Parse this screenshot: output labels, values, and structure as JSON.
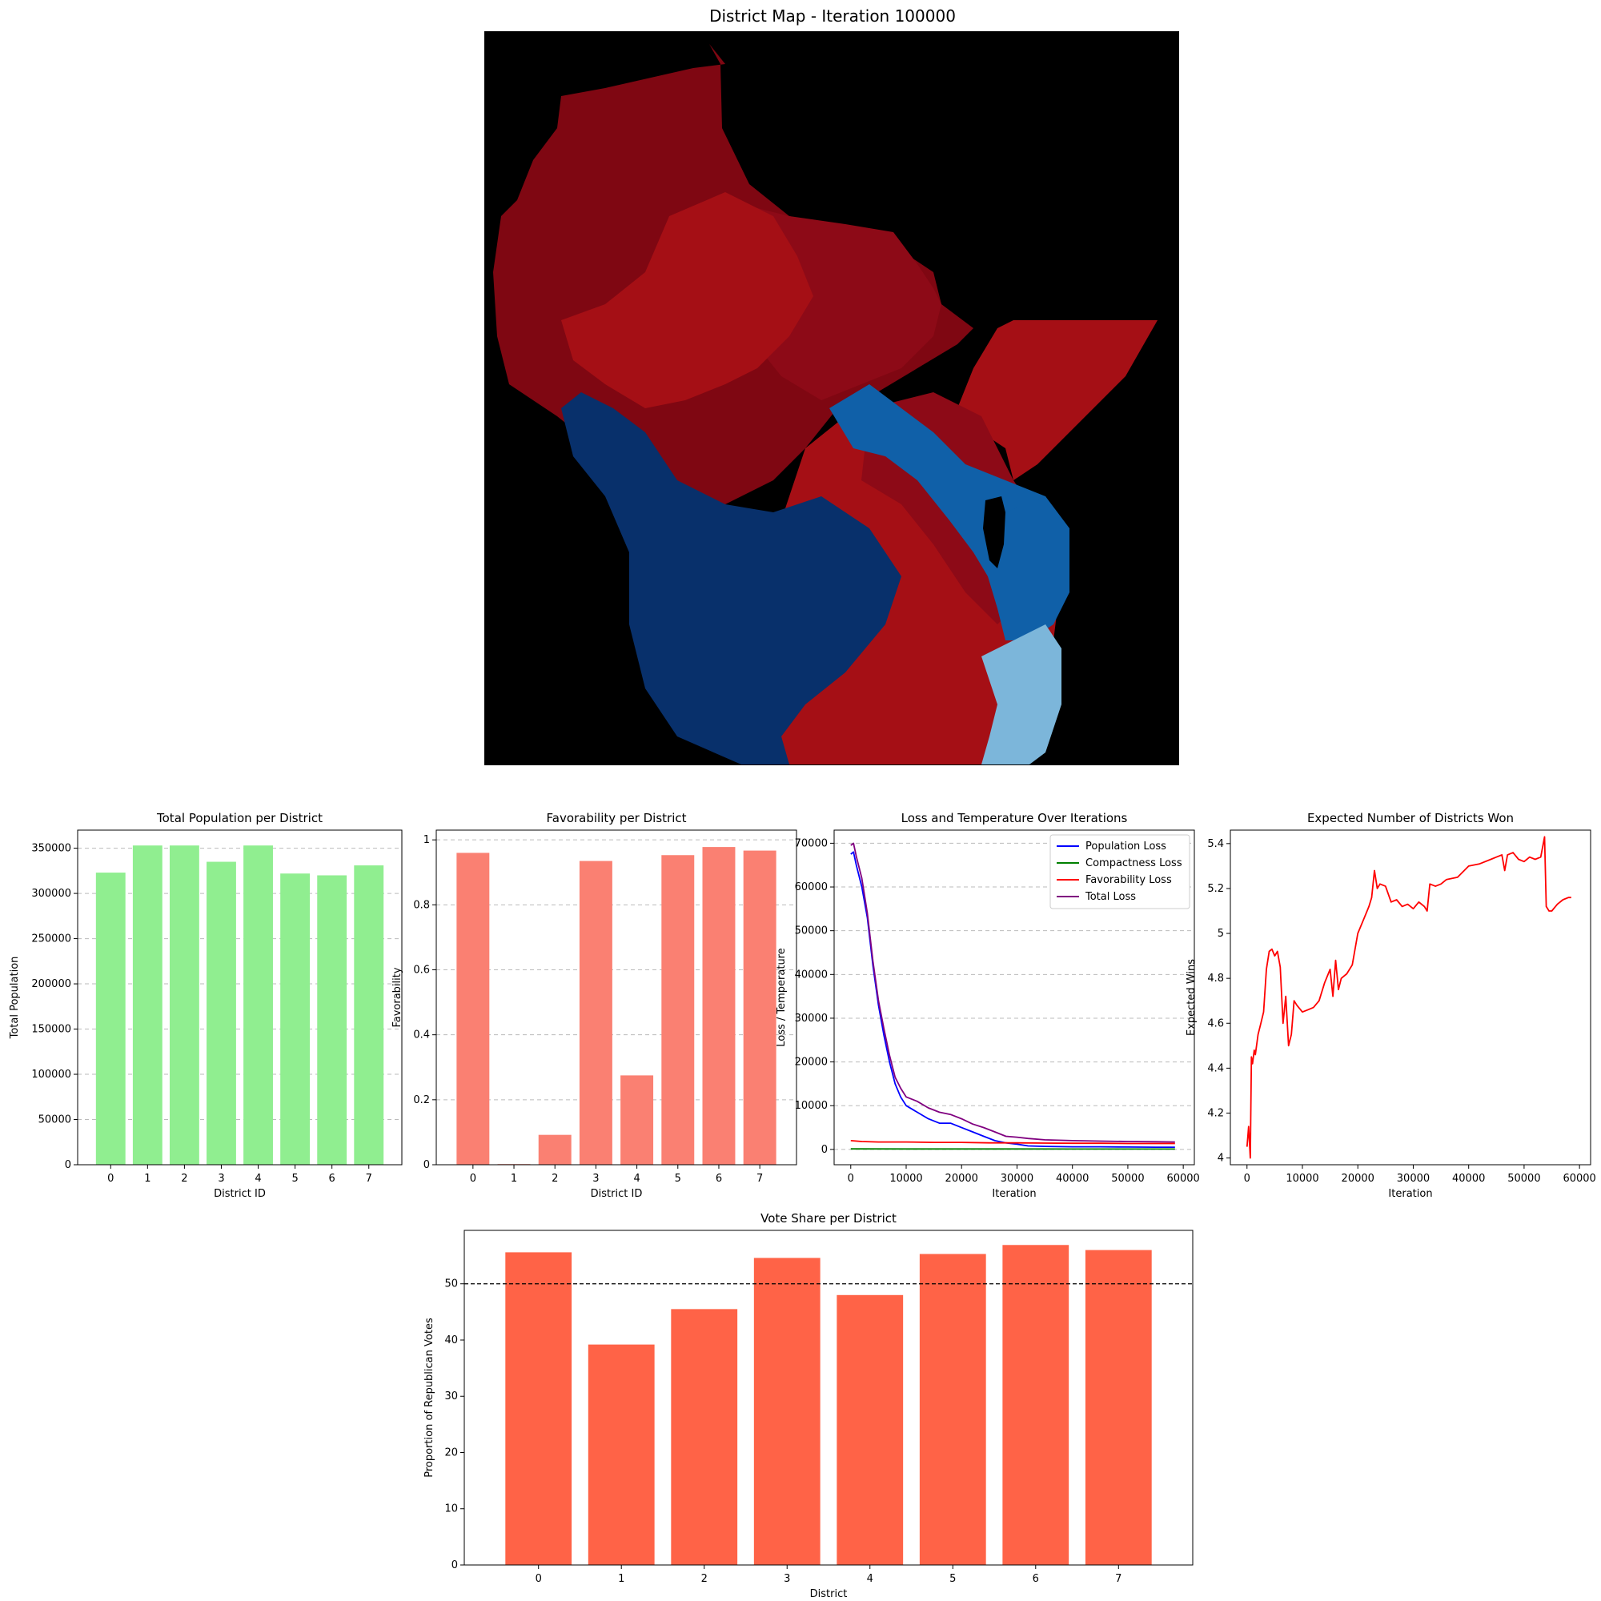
{
  "map": {
    "title": "District Map - Iteration 100000",
    "colors": {
      "background": "#000000",
      "dark_red": "#7f0712",
      "red": "#a50f15",
      "mid_red": "#8d0a17",
      "navy": "#08306b",
      "blue": "#1060a8",
      "light_blue": "#7cb6da"
    }
  },
  "chart_data": [
    {
      "type": "bar",
      "title": "Total Population per District",
      "xlabel": "District ID",
      "ylabel": "Total Population",
      "categories": [
        "0",
        "1",
        "2",
        "3",
        "4",
        "5",
        "6",
        "7"
      ],
      "values": [
        323000,
        353000,
        353000,
        335000,
        353000,
        322000,
        320000,
        331000
      ],
      "ylim": [
        0,
        370000
      ],
      "yticks": [
        0,
        50000,
        100000,
        150000,
        200000,
        250000,
        300000,
        350000
      ],
      "color": "#90ee90",
      "grid": "y-dashed"
    },
    {
      "type": "bar",
      "title": "Favorability per District",
      "xlabel": "District ID",
      "ylabel": "Favorability",
      "categories": [
        "0",
        "1",
        "2",
        "3",
        "4",
        "5",
        "6",
        "7"
      ],
      "values": [
        0.96,
        0.002,
        0.092,
        0.935,
        0.275,
        0.953,
        0.978,
        0.967
      ],
      "ylim": [
        0,
        1.03
      ],
      "yticks": [
        0.0,
        0.2,
        0.4,
        0.6,
        0.8,
        1.0
      ],
      "color": "#fa8072",
      "grid": "y-dashed"
    },
    {
      "type": "line",
      "title": "Loss and Temperature Over Iterations",
      "xlabel": "Iteration",
      "ylabel": "Loss / Temperature",
      "xlim": [
        -3000,
        62000
      ],
      "ylim": [
        -3500,
        73000
      ],
      "xticks": [
        0,
        10000,
        20000,
        30000,
        40000,
        50000,
        60000
      ],
      "yticks": [
        0,
        10000,
        20000,
        30000,
        40000,
        50000,
        60000,
        70000
      ],
      "legend": "top-right",
      "grid": "y-dashed",
      "series": [
        {
          "name": "Population Loss",
          "color": "#0000ff",
          "x": [
            0,
            500,
            1000,
            2000,
            3000,
            4000,
            5000,
            6000,
            7000,
            8000,
            9000,
            10000,
            12000,
            14000,
            16000,
            18000,
            20000,
            22000,
            24000,
            26000,
            28000,
            30000,
            32000,
            35000,
            40000,
            45000,
            50000,
            55000,
            58500
          ],
          "y": [
            67500,
            68000,
            65000,
            60000,
            53000,
            42000,
            33000,
            26000,
            20000,
            15000,
            12000,
            10000,
            8500,
            7000,
            6000,
            6000,
            5000,
            4000,
            3000,
            2000,
            1500,
            1200,
            800,
            700,
            600,
            600,
            550,
            500,
            500
          ]
        },
        {
          "name": "Compactness Loss",
          "color": "#008000",
          "x": [
            0,
            10000,
            20000,
            30000,
            40000,
            50000,
            58500
          ],
          "y": [
            120,
            110,
            100,
            100,
            90,
            90,
            90
          ]
        },
        {
          "name": "Favorability Loss",
          "color": "#ff0000",
          "x": [
            0,
            2000,
            5000,
            10000,
            15000,
            20000,
            25000,
            30000,
            35000,
            40000,
            45000,
            50000,
            55000,
            58500
          ],
          "y": [
            2000,
            1800,
            1700,
            1700,
            1600,
            1600,
            1500,
            1500,
            1450,
            1400,
            1400,
            1350,
            1350,
            1350
          ]
        },
        {
          "name": "Total Loss",
          "color": "#800080",
          "x": [
            0,
            500,
            1000,
            2000,
            3000,
            4000,
            5000,
            6000,
            7000,
            8000,
            9000,
            10000,
            12000,
            14000,
            16000,
            18000,
            20000,
            22000,
            24000,
            26000,
            28000,
            30000,
            32000,
            35000,
            40000,
            45000,
            50000,
            55000,
            58500
          ],
          "y": [
            69500,
            70000,
            67000,
            62000,
            54000,
            43000,
            34000,
            27500,
            21500,
            16500,
            14000,
            12000,
            11000,
            9500,
            8500,
            8000,
            7000,
            5800,
            5000,
            4000,
            3000,
            2800,
            2500,
            2200,
            2000,
            1900,
            1800,
            1750,
            1700
          ]
        }
      ]
    },
    {
      "type": "line",
      "title": "Expected Number of Districts Won",
      "xlabel": "Iteration",
      "ylabel": "Expected Wins",
      "xlim": [
        -3000,
        62000
      ],
      "ylim": [
        3.97,
        5.46
      ],
      "xticks": [
        0,
        10000,
        20000,
        30000,
        40000,
        50000,
        60000
      ],
      "yticks": [
        4.0,
        4.2,
        4.4,
        4.6,
        4.8,
        5.0,
        5.2,
        5.4
      ],
      "series": [
        {
          "name": "",
          "color": "#ff0000",
          "x": [
            0,
            300,
            600,
            800,
            1000,
            1300,
            1500,
            2000,
            2500,
            3000,
            3500,
            4000,
            4500,
            5000,
            5500,
            6000,
            6500,
            7000,
            7500,
            8000,
            8500,
            9000,
            10000,
            11000,
            12000,
            13000,
            14000,
            15000,
            15500,
            16000,
            16500,
            17000,
            18000,
            19000,
            20000,
            21000,
            22000,
            22500,
            23000,
            23500,
            24000,
            25000,
            26000,
            27000,
            28000,
            29000,
            30000,
            31000,
            32000,
            32500,
            33000,
            34000,
            35000,
            36000,
            38000,
            40000,
            42000,
            44000,
            45000,
            46000,
            46500,
            47000,
            48000,
            49000,
            50000,
            51000,
            52000,
            53000,
            53700,
            54000,
            54500,
            55000,
            56000,
            57000,
            58000,
            58500
          ],
          "y": [
            4.05,
            4.14,
            4.0,
            4.45,
            4.42,
            4.48,
            4.46,
            4.55,
            4.6,
            4.65,
            4.84,
            4.92,
            4.93,
            4.9,
            4.92,
            4.85,
            4.6,
            4.72,
            4.5,
            4.55,
            4.7,
            4.68,
            4.65,
            4.66,
            4.67,
            4.7,
            4.78,
            4.84,
            4.72,
            4.88,
            4.75,
            4.8,
            4.82,
            4.86,
            5.0,
            5.06,
            5.12,
            5.16,
            5.28,
            5.2,
            5.22,
            5.21,
            5.14,
            5.15,
            5.12,
            5.13,
            5.11,
            5.14,
            5.12,
            5.1,
            5.22,
            5.21,
            5.22,
            5.24,
            5.25,
            5.3,
            5.31,
            5.33,
            5.34,
            5.35,
            5.28,
            5.35,
            5.36,
            5.33,
            5.32,
            5.34,
            5.33,
            5.34,
            5.43,
            5.12,
            5.1,
            5.1,
            5.13,
            5.15,
            5.16,
            5.16
          ]
        }
      ]
    },
    {
      "type": "bar",
      "title": "Vote Share per District",
      "xlabel": "District",
      "ylabel": "Proportion of Republican Votes",
      "categories": [
        "0",
        "1",
        "2",
        "3",
        "4",
        "5",
        "6",
        "7"
      ],
      "values": [
        55.6,
        39.2,
        45.5,
        54.6,
        48.0,
        55.3,
        56.9,
        56.0
      ],
      "ylim": [
        0,
        59.5
      ],
      "yticks": [
        0,
        10,
        20,
        30,
        40,
        50
      ],
      "reference_line": 50,
      "color": "#ff6347"
    }
  ]
}
